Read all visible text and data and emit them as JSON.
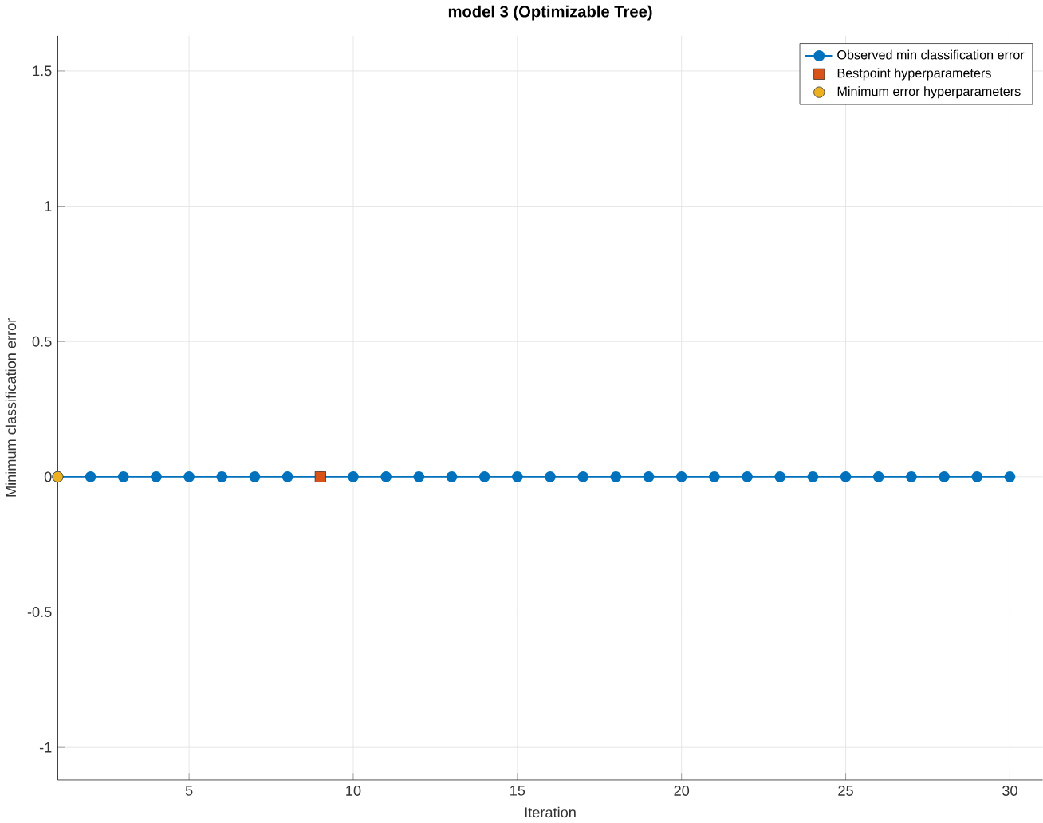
{
  "chart_data": {
    "type": "line",
    "title": "model 3 (Optimizable Tree)",
    "xlabel": "Iteration",
    "ylabel": "Minimum classification error",
    "xlim": [
      1,
      31
    ],
    "ylim": [
      -1.12,
      1.63
    ],
    "xticks": [
      5,
      10,
      15,
      20,
      25,
      30
    ],
    "yticks": [
      -1,
      -0.5,
      0,
      0.5,
      1,
      1.5
    ],
    "grid": true,
    "legend": "top right",
    "series": [
      {
        "name": "Observed min classification error",
        "color": "#0072bd",
        "marker": "circle",
        "x": [
          1,
          2,
          3,
          4,
          5,
          6,
          7,
          8,
          9,
          10,
          11,
          12,
          13,
          14,
          15,
          16,
          17,
          18,
          19,
          20,
          21,
          22,
          23,
          24,
          25,
          26,
          27,
          28,
          29,
          30
        ],
        "values": [
          0,
          0,
          0,
          0,
          0,
          0,
          0,
          0,
          0,
          0,
          0,
          0,
          0,
          0,
          0,
          0,
          0,
          0,
          0,
          0,
          0,
          0,
          0,
          0,
          0,
          0,
          0,
          0,
          0,
          0
        ]
      },
      {
        "name": "Bestpoint hyperparameters",
        "type": "scatter",
        "color": "#d95319",
        "marker": "square",
        "x": [
          9
        ],
        "values": [
          0
        ]
      },
      {
        "name": "Minimum error hyperparameters",
        "type": "scatter",
        "color": "#edb120",
        "marker": "circle",
        "x": [
          1
        ],
        "values": [
          0
        ]
      }
    ]
  }
}
